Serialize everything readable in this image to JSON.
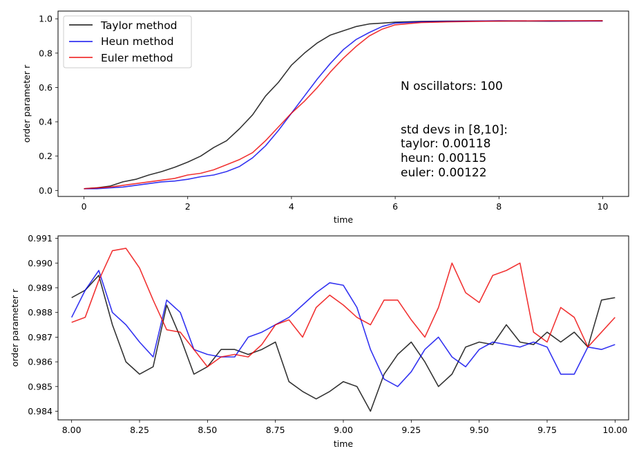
{
  "colors": {
    "taylor": "#000000",
    "heun": "#0000ee",
    "euler": "#ee0000"
  },
  "chart_data": [
    {
      "type": "line",
      "xlabel": "time",
      "ylabel": "order parameter r",
      "xlim": [
        -0.5,
        10.5
      ],
      "ylim": [
        -0.035,
        1.045
      ],
      "xticks": [
        0,
        2,
        4,
        6,
        8,
        10
      ],
      "xtick_labels": [
        "0",
        "2",
        "4",
        "6",
        "8",
        "10"
      ],
      "yticks": [
        0.0,
        0.2,
        0.4,
        0.6,
        0.8,
        1.0
      ],
      "ytick_labels": [
        "0.0",
        "0.2",
        "0.4",
        "0.6",
        "0.8",
        "1.0"
      ],
      "legend_position": "top-left",
      "series": [
        {
          "name": "Taylor method",
          "color_key": "taylor",
          "x": [
            0,
            0.25,
            0.5,
            0.75,
            1.0,
            1.25,
            1.5,
            1.75,
            2.0,
            2.25,
            2.5,
            2.75,
            3.0,
            3.25,
            3.5,
            3.75,
            4.0,
            4.25,
            4.5,
            4.75,
            5.0,
            5.25,
            5.5,
            5.75,
            6.0,
            6.5,
            7.0,
            7.5,
            8.0,
            9.0,
            10.0
          ],
          "y": [
            0.01,
            0.015,
            0.025,
            0.05,
            0.065,
            0.09,
            0.11,
            0.135,
            0.165,
            0.2,
            0.25,
            0.29,
            0.36,
            0.44,
            0.55,
            0.63,
            0.73,
            0.8,
            0.86,
            0.905,
            0.93,
            0.955,
            0.97,
            0.975,
            0.98,
            0.985,
            0.986,
            0.987,
            0.987,
            0.986,
            0.988
          ]
        },
        {
          "name": "Heun method",
          "color_key": "heun",
          "x": [
            0,
            0.25,
            0.5,
            0.75,
            1.0,
            1.25,
            1.5,
            1.75,
            2.0,
            2.25,
            2.5,
            2.75,
            3.0,
            3.25,
            3.5,
            3.75,
            4.0,
            4.25,
            4.5,
            4.75,
            5.0,
            5.25,
            5.5,
            5.75,
            6.0,
            6.5,
            7.0,
            7.5,
            8.0,
            9.0,
            10.0
          ],
          "y": [
            0.01,
            0.01,
            0.015,
            0.02,
            0.03,
            0.04,
            0.05,
            0.055,
            0.065,
            0.08,
            0.09,
            0.11,
            0.14,
            0.19,
            0.26,
            0.35,
            0.45,
            0.55,
            0.65,
            0.74,
            0.82,
            0.88,
            0.92,
            0.955,
            0.975,
            0.982,
            0.985,
            0.986,
            0.988,
            0.987,
            0.987
          ]
        },
        {
          "name": "Euler method",
          "color_key": "euler",
          "x": [
            0,
            0.25,
            0.5,
            0.75,
            1.0,
            1.25,
            1.5,
            1.75,
            2.0,
            2.25,
            2.5,
            2.75,
            3.0,
            3.25,
            3.5,
            3.75,
            4.0,
            4.25,
            4.5,
            4.75,
            5.0,
            5.25,
            5.5,
            5.75,
            6.0,
            6.5,
            7.0,
            7.5,
            8.0,
            9.0,
            10.0
          ],
          "y": [
            0.01,
            0.015,
            0.02,
            0.03,
            0.04,
            0.05,
            0.06,
            0.07,
            0.09,
            0.1,
            0.12,
            0.15,
            0.18,
            0.22,
            0.29,
            0.37,
            0.45,
            0.52,
            0.6,
            0.69,
            0.77,
            0.84,
            0.9,
            0.94,
            0.965,
            0.978,
            0.982,
            0.985,
            0.987,
            0.988,
            0.988
          ]
        }
      ],
      "annotations": [
        "N oscillators: 100",
        "std devs in [8,10]:",
        "taylor: 0.00118",
        "heun: 0.00115",
        "euler: 0.00122"
      ]
    },
    {
      "type": "line",
      "xlabel": "time",
      "ylabel": "order parameter r",
      "xlim": [
        7.95,
        10.05
      ],
      "ylim": [
        0.98365,
        0.9911
      ],
      "xticks": [
        8.0,
        8.25,
        8.5,
        8.75,
        9.0,
        9.25,
        9.5,
        9.75,
        10.0
      ],
      "xtick_labels": [
        "8.00",
        "8.25",
        "8.50",
        "8.75",
        "9.00",
        "9.25",
        "9.50",
        "9.75",
        "10.00"
      ],
      "yticks": [
        0.984,
        0.985,
        0.986,
        0.987,
        0.988,
        0.989,
        0.99,
        0.991
      ],
      "ytick_labels": [
        "0.984",
        "0.985",
        "0.986",
        "0.987",
        "0.988",
        "0.989",
        "0.990",
        "0.991"
      ],
      "series": [
        {
          "name": "Taylor method",
          "color_key": "taylor",
          "x": [
            8.0,
            8.05,
            8.1,
            8.15,
            8.2,
            8.25,
            8.3,
            8.35,
            8.4,
            8.45,
            8.5,
            8.55,
            8.6,
            8.65,
            8.7,
            8.75,
            8.8,
            8.85,
            8.9,
            8.95,
            9.0,
            9.05,
            9.1,
            9.15,
            9.2,
            9.25,
            9.3,
            9.35,
            9.4,
            9.45,
            9.5,
            9.55,
            9.6,
            9.65,
            9.7,
            9.75,
            9.8,
            9.85,
            9.9,
            9.95,
            10.0
          ],
          "y": [
            0.9886,
            0.9889,
            0.9895,
            0.9875,
            0.986,
            0.9855,
            0.9858,
            0.9883,
            0.987,
            0.9855,
            0.9858,
            0.9865,
            0.9865,
            0.9863,
            0.9865,
            0.9868,
            0.9852,
            0.9848,
            0.9845,
            0.9848,
            0.9852,
            0.985,
            0.984,
            0.9855,
            0.9863,
            0.9868,
            0.986,
            0.985,
            0.9855,
            0.9866,
            0.9868,
            0.9867,
            0.9875,
            0.9868,
            0.9867,
            0.9872,
            0.9868,
            0.9872,
            0.9866,
            0.9885,
            0.9886
          ]
        },
        {
          "name": "Heun method",
          "color_key": "heun",
          "x": [
            8.0,
            8.05,
            8.1,
            8.15,
            8.2,
            8.25,
            8.3,
            8.35,
            8.4,
            8.45,
            8.5,
            8.55,
            8.6,
            8.65,
            8.7,
            8.75,
            8.8,
            8.85,
            8.9,
            8.95,
            9.0,
            9.05,
            9.1,
            9.15,
            9.2,
            9.25,
            9.3,
            9.35,
            9.4,
            9.45,
            9.5,
            9.55,
            9.6,
            9.65,
            9.7,
            9.75,
            9.8,
            9.85,
            9.9,
            9.95,
            10.0
          ],
          "y": [
            0.9878,
            0.9889,
            0.9897,
            0.988,
            0.9875,
            0.9868,
            0.9862,
            0.9885,
            0.988,
            0.9865,
            0.9863,
            0.9862,
            0.9862,
            0.987,
            0.9872,
            0.9875,
            0.9878,
            0.9883,
            0.9888,
            0.9892,
            0.9891,
            0.9882,
            0.9865,
            0.9853,
            0.985,
            0.9856,
            0.9865,
            0.987,
            0.9862,
            0.9858,
            0.9865,
            0.9868,
            0.9867,
            0.9866,
            0.9868,
            0.9866,
            0.9855,
            0.9855,
            0.9866,
            0.9865,
            0.9867
          ]
        },
        {
          "name": "Euler method",
          "color_key": "euler",
          "x": [
            8.0,
            8.05,
            8.1,
            8.15,
            8.2,
            8.25,
            8.3,
            8.35,
            8.4,
            8.45,
            8.5,
            8.55,
            8.6,
            8.65,
            8.7,
            8.75,
            8.8,
            8.85,
            8.9,
            8.95,
            9.0,
            9.05,
            9.1,
            9.15,
            9.2,
            9.25,
            9.3,
            9.35,
            9.4,
            9.45,
            9.5,
            9.55,
            9.6,
            9.65,
            9.7,
            9.75,
            9.8,
            9.85,
            9.9,
            9.95,
            10.0
          ],
          "y": [
            0.9876,
            0.9878,
            0.9893,
            0.9905,
            0.9906,
            0.9898,
            0.9885,
            0.9873,
            0.9872,
            0.9865,
            0.9858,
            0.9862,
            0.9863,
            0.9862,
            0.9867,
            0.9875,
            0.9877,
            0.987,
            0.9882,
            0.9887,
            0.9883,
            0.9878,
            0.9875,
            0.9885,
            0.9885,
            0.9877,
            0.987,
            0.9882,
            0.99,
            0.9888,
            0.9884,
            0.9895,
            0.9897,
            0.99,
            0.9872,
            0.9868,
            0.9882,
            0.9878,
            0.9866,
            0.9872,
            0.9878
          ]
        }
      ]
    }
  ]
}
